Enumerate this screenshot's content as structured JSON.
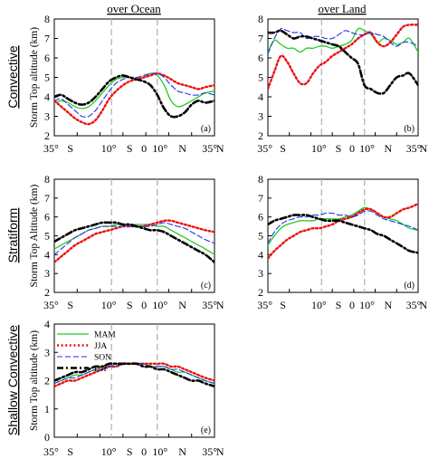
{
  "column_titles": [
    "over Ocean",
    "over Land"
  ],
  "row_titles": [
    "Convective",
    "Stratiform",
    "Shallow Convective"
  ],
  "legend": {
    "entries": [
      {
        "name": "MAM",
        "color": "#22cc22",
        "style": "solid"
      },
      {
        "name": "JJA",
        "color": "#ee1111",
        "style": "dotted"
      },
      {
        "name": "SON",
        "color": "#2233ee",
        "style": "dashed"
      },
      {
        "name": "DJF",
        "color": "#000000",
        "style": "dashdot"
      }
    ]
  },
  "x_tick_labels": [
    "35°",
    "S",
    "10°",
    "S",
    "0",
    "10°",
    "N",
    "35°",
    "N"
  ],
  "chart_data": [
    {
      "type": "line",
      "tag": "(a)",
      "row": "Convective",
      "column": "over Ocean",
      "ylabel": "Storm Top altitude (km)",
      "ylim": [
        2,
        8
      ],
      "yticks": [
        2,
        3,
        4,
        5,
        6,
        7,
        8
      ],
      "xlim": [
        -35,
        35
      ],
      "vlines": [
        -10,
        10
      ],
      "x": [
        -35,
        -32,
        -29,
        -26,
        -23,
        -20,
        -17,
        -14,
        -11,
        -8,
        -5,
        -2,
        1,
        4,
        7,
        10,
        13,
        16,
        19,
        22,
        25,
        28,
        31,
        35
      ],
      "series": [
        {
          "name": "MAM",
          "values": [
            3.7,
            3.8,
            3.7,
            3.5,
            3.4,
            3.5,
            3.8,
            4.2,
            4.6,
            4.9,
            5.0,
            5.0,
            4.9,
            5.0,
            5.2,
            5.1,
            4.6,
            3.8,
            3.5,
            3.6,
            3.8,
            4.0,
            4.2,
            4.3
          ]
        },
        {
          "name": "JJA",
          "values": [
            3.8,
            3.5,
            3.2,
            2.9,
            2.7,
            2.6,
            2.8,
            3.3,
            3.9,
            4.3,
            4.6,
            4.8,
            4.9,
            5.0,
            5.1,
            5.2,
            5.1,
            4.9,
            4.7,
            4.6,
            4.5,
            4.4,
            4.5,
            4.6
          ]
        },
        {
          "name": "SON",
          "values": [
            3.8,
            3.9,
            3.6,
            3.3,
            3.0,
            3.0,
            3.3,
            3.8,
            4.3,
            4.7,
            4.9,
            5.0,
            5.0,
            5.1,
            5.2,
            5.2,
            5.0,
            4.6,
            4.3,
            4.2,
            4.1,
            4.1,
            4.2,
            4.1
          ]
        },
        {
          "name": "DJF",
          "values": [
            4.0,
            4.1,
            3.9,
            3.7,
            3.6,
            3.7,
            4.0,
            4.4,
            4.8,
            5.0,
            5.1,
            5.0,
            4.9,
            4.8,
            4.6,
            4.1,
            3.4,
            3.0,
            3.0,
            3.2,
            3.6,
            3.8,
            3.7,
            3.8
          ]
        }
      ]
    },
    {
      "type": "line",
      "tag": "(b)",
      "row": "Convective",
      "column": "over Land",
      "ylabel": "",
      "ylim": [
        2,
        8
      ],
      "yticks": [
        2,
        3,
        4,
        5,
        6,
        7,
        8
      ],
      "xlim": [
        -35,
        35
      ],
      "vlines": [
        -10,
        10
      ],
      "x": [
        -35,
        -32,
        -29,
        -26,
        -23,
        -20,
        -17,
        -14,
        -11,
        -8,
        -5,
        -2,
        1,
        4,
        7,
        10,
        13,
        16,
        19,
        22,
        25,
        28,
        31,
        35
      ],
      "series": [
        {
          "name": "MAM",
          "values": [
            6.3,
            6.9,
            6.7,
            6.5,
            6.5,
            6.3,
            6.5,
            6.5,
            6.6,
            6.6,
            6.5,
            6.6,
            6.7,
            6.9,
            7.5,
            7.4,
            7.2,
            6.8,
            7.0,
            6.9,
            6.7,
            6.8,
            7.0,
            6.3
          ]
        },
        {
          "name": "JJA",
          "values": [
            4.4,
            5.3,
            6.1,
            5.8,
            5.2,
            4.7,
            4.7,
            5.2,
            5.6,
            5.8,
            6.1,
            6.3,
            6.5,
            6.7,
            7.0,
            7.2,
            7.3,
            6.8,
            6.6,
            6.8,
            7.2,
            7.6,
            7.7,
            7.7
          ]
        },
        {
          "name": "SON",
          "values": [
            6.2,
            7.0,
            7.5,
            7.4,
            7.3,
            7.3,
            7.0,
            7.1,
            7.1,
            7.0,
            7.0,
            7.2,
            7.4,
            7.3,
            7.2,
            7.2,
            7.3,
            7.2,
            7.1,
            6.8,
            6.6,
            6.8,
            6.8,
            6.6
          ]
        },
        {
          "name": "DJF",
          "values": [
            7.3,
            7.3,
            7.4,
            7.2,
            7.0,
            7.1,
            7.1,
            7.0,
            6.9,
            6.8,
            6.7,
            6.6,
            6.3,
            6.0,
            5.7,
            4.6,
            4.4,
            4.2,
            4.2,
            4.6,
            5.0,
            5.1,
            5.2,
            4.6
          ]
        }
      ]
    },
    {
      "type": "line",
      "tag": "(c)",
      "row": "Stratiform",
      "column": "over Ocean",
      "ylabel": "Storm Top Altitude (km)",
      "ylim": [
        2,
        8
      ],
      "yticks": [
        2,
        3,
        4,
        5,
        6,
        7,
        8
      ],
      "xlim": [
        -35,
        35
      ],
      "vlines": [
        -10,
        10
      ],
      "x": [
        -35,
        -32,
        -29,
        -26,
        -23,
        -20,
        -17,
        -14,
        -11,
        -8,
        -5,
        -2,
        1,
        4,
        7,
        10,
        13,
        16,
        19,
        22,
        25,
        28,
        31,
        35
      ],
      "series": [
        {
          "name": "MAM",
          "values": [
            4.3,
            4.5,
            4.7,
            4.9,
            5.1,
            5.3,
            5.4,
            5.5,
            5.5,
            5.6,
            5.6,
            5.6,
            5.6,
            5.6,
            5.6,
            5.5,
            5.5,
            5.3,
            5.1,
            4.9,
            4.7,
            4.5,
            4.3,
            4.0
          ]
        },
        {
          "name": "JJA",
          "values": [
            3.6,
            3.9,
            4.2,
            4.5,
            4.7,
            4.9,
            5.1,
            5.2,
            5.3,
            5.4,
            5.5,
            5.5,
            5.5,
            5.5,
            5.6,
            5.7,
            5.8,
            5.8,
            5.7,
            5.6,
            5.5,
            5.4,
            5.3,
            5.2
          ]
        },
        {
          "name": "SON",
          "values": [
            4.0,
            4.3,
            4.6,
            4.9,
            5.1,
            5.3,
            5.4,
            5.5,
            5.5,
            5.5,
            5.5,
            5.5,
            5.5,
            5.5,
            5.5,
            5.6,
            5.7,
            5.6,
            5.5,
            5.4,
            5.2,
            5.0,
            4.8,
            4.6
          ]
        },
        {
          "name": "DJF",
          "values": [
            4.7,
            4.9,
            5.1,
            5.3,
            5.4,
            5.5,
            5.6,
            5.7,
            5.7,
            5.7,
            5.6,
            5.6,
            5.5,
            5.4,
            5.3,
            5.3,
            5.2,
            5.0,
            4.8,
            4.6,
            4.4,
            4.2,
            4.0,
            3.6
          ]
        }
      ]
    },
    {
      "type": "line",
      "tag": "(d)",
      "row": "Stratiform",
      "column": "over Land",
      "ylabel": "",
      "ylim": [
        2,
        8
      ],
      "yticks": [
        2,
        3,
        4,
        5,
        6,
        7,
        8
      ],
      "xlim": [
        -35,
        35
      ],
      "vlines": [
        -10,
        10
      ],
      "x": [
        -35,
        -32,
        -29,
        -26,
        -23,
        -20,
        -17,
        -14,
        -11,
        -8,
        -5,
        -2,
        1,
        4,
        7,
        10,
        13,
        16,
        19,
        22,
        25,
        28,
        31,
        35
      ],
      "series": [
        {
          "name": "MAM",
          "values": [
            4.5,
            5.0,
            5.4,
            5.6,
            5.7,
            5.8,
            5.8,
            5.8,
            5.9,
            5.9,
            5.9,
            5.9,
            6.0,
            6.1,
            6.3,
            6.5,
            6.4,
            6.2,
            6.0,
            5.9,
            5.8,
            5.6,
            5.4,
            5.3
          ]
        },
        {
          "name": "JJA",
          "values": [
            3.8,
            4.2,
            4.5,
            4.8,
            5.0,
            5.2,
            5.3,
            5.4,
            5.4,
            5.5,
            5.6,
            5.8,
            5.9,
            6.0,
            6.2,
            6.4,
            6.4,
            6.2,
            6.0,
            6.0,
            6.2,
            6.4,
            6.5,
            6.7
          ]
        },
        {
          "name": "SON",
          "values": [
            4.6,
            5.2,
            5.6,
            5.8,
            5.9,
            6.0,
            6.0,
            6.1,
            6.1,
            6.2,
            6.2,
            6.1,
            6.1,
            6.0,
            6.1,
            6.3,
            6.3,
            6.1,
            5.9,
            5.8,
            5.7,
            5.6,
            5.5,
            5.3
          ]
        },
        {
          "name": "DJF",
          "values": [
            5.6,
            5.8,
            5.9,
            6.0,
            6.1,
            6.1,
            6.1,
            6.0,
            5.9,
            5.8,
            5.8,
            5.8,
            5.7,
            5.6,
            5.5,
            5.4,
            5.3,
            5.1,
            5.0,
            4.8,
            4.6,
            4.4,
            4.2,
            4.1
          ]
        }
      ]
    },
    {
      "type": "line",
      "tag": "(e)",
      "row": "Shallow Convective",
      "column": "over Ocean",
      "ylabel": "Storm Top altitude (km)",
      "ylim": [
        0,
        4
      ],
      "yticks": [
        0,
        1,
        2,
        3,
        4
      ],
      "xlim": [
        -35,
        35
      ],
      "vlines": [
        -10,
        10
      ],
      "x": [
        -35,
        -32,
        -29,
        -26,
        -23,
        -20,
        -17,
        -14,
        -11,
        -8,
        -5,
        -2,
        1,
        4,
        7,
        10,
        13,
        16,
        19,
        22,
        25,
        28,
        31,
        35
      ],
      "series": [
        {
          "name": "MAM",
          "values": [
            1.9,
            2.0,
            2.1,
            2.2,
            2.2,
            2.3,
            2.4,
            2.5,
            2.5,
            2.6,
            2.6,
            2.6,
            2.6,
            2.6,
            2.5,
            2.5,
            2.5,
            2.4,
            2.3,
            2.3,
            2.2,
            2.1,
            2.0,
            1.9
          ]
        },
        {
          "name": "JJA",
          "values": [
            1.8,
            1.9,
            2.0,
            2.0,
            2.1,
            2.2,
            2.3,
            2.4,
            2.5,
            2.5,
            2.6,
            2.6,
            2.6,
            2.6,
            2.6,
            2.6,
            2.6,
            2.5,
            2.5,
            2.4,
            2.3,
            2.2,
            2.1,
            2.0
          ]
        },
        {
          "name": "SON",
          "values": [
            1.9,
            2.0,
            2.1,
            2.1,
            2.2,
            2.3,
            2.4,
            2.4,
            2.5,
            2.5,
            2.6,
            2.6,
            2.6,
            2.6,
            2.5,
            2.5,
            2.5,
            2.4,
            2.4,
            2.3,
            2.2,
            2.1,
            2.0,
            1.9
          ]
        },
        {
          "name": "DJF",
          "values": [
            2.0,
            2.1,
            2.2,
            2.3,
            2.3,
            2.4,
            2.5,
            2.5,
            2.6,
            2.6,
            2.6,
            2.6,
            2.6,
            2.5,
            2.5,
            2.4,
            2.4,
            2.3,
            2.2,
            2.1,
            2.0,
            2.0,
            1.9,
            1.8
          ]
        }
      ]
    }
  ]
}
